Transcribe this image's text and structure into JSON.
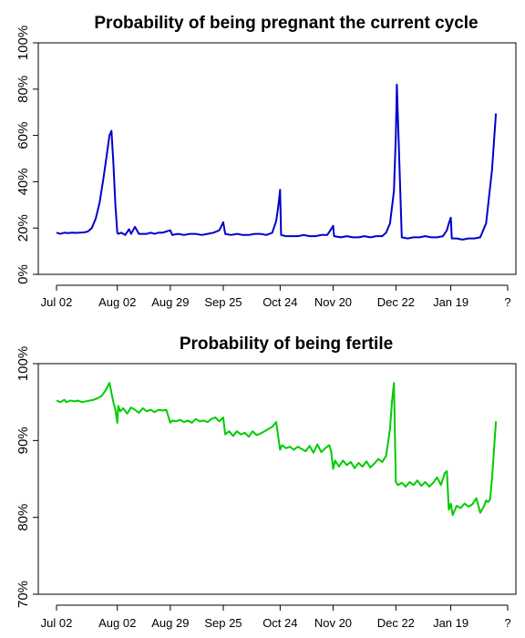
{
  "chart_data": [
    {
      "type": "line",
      "title": "Probability of being pregnant the current cycle",
      "xlabel": "",
      "ylabel": "",
      "x_tick_labels": [
        "Jul 02",
        "Aug 02",
        "Aug 29",
        "Sep 25",
        "Oct 24",
        "Nov 20",
        "Dec 22",
        "Jan 19",
        "?"
      ],
      "y_tick_labels": [
        "0%",
        "20%",
        "40%",
        "60%",
        "80%",
        "100%"
      ],
      "ylim": [
        0,
        100
      ],
      "y_ticks": [
        0,
        20,
        40,
        60,
        80,
        100
      ],
      "xlim": [
        -2,
        224
      ],
      "x_ticks": [
        0,
        31,
        58,
        85,
        114,
        141,
        173,
        201,
        230
      ],
      "grid": false,
      "legend": "none",
      "color": "#0000cc",
      "series": [
        {
          "x": [
            0,
            2,
            4,
            6,
            8,
            10,
            12,
            14,
            16,
            18,
            20,
            22,
            24,
            26,
            27,
            28,
            29,
            30,
            31,
            31.5,
            33,
            35,
            37,
            38,
            40,
            42,
            44,
            46,
            48,
            50,
            52,
            54,
            56,
            58,
            59,
            62,
            65,
            68,
            71,
            74,
            77,
            80,
            83,
            85,
            86,
            89,
            92,
            95,
            98,
            101,
            104,
            107,
            110,
            112,
            113,
            114,
            114.5,
            117,
            120,
            123,
            126,
            129,
            132,
            135,
            138,
            140,
            141,
            141.5,
            145,
            148,
            151,
            154,
            157,
            160,
            163,
            166,
            168,
            170,
            172,
            173,
            173.5,
            176,
            179,
            182,
            185,
            188,
            191,
            194,
            197,
            199,
            200,
            201,
            201.5,
            204,
            207,
            210,
            213,
            216,
            219,
            222,
            224
          ],
          "values": [
            18,
            17.5,
            18,
            17.8,
            18,
            17.9,
            18,
            18.1,
            18.5,
            20,
            24,
            31,
            42,
            54,
            60,
            62,
            48,
            30,
            18,
            17.5,
            18,
            17,
            19.5,
            17.5,
            20.5,
            17.5,
            17.5,
            17.5,
            18,
            17.5,
            18,
            18,
            18.5,
            19,
            17,
            17.5,
            17,
            17.5,
            17.5,
            17,
            17.5,
            18,
            19,
            22.5,
            17.5,
            17,
            17.5,
            17,
            17,
            17.5,
            17.5,
            17,
            18,
            23,
            29,
            36.5,
            17,
            16.5,
            16.5,
            16.5,
            17,
            16.5,
            16.5,
            17,
            17,
            19.5,
            21,
            16.5,
            16,
            16.5,
            16,
            16,
            16.5,
            16,
            16.5,
            16.5,
            18,
            22,
            36,
            60,
            82,
            16,
            15.5,
            16,
            16,
            16.5,
            16,
            16,
            16.5,
            19,
            22,
            24.5,
            15.5,
            15.5,
            15,
            15.5,
            15.5,
            16,
            22,
            45,
            69.5
          ]
        }
      ]
    },
    {
      "type": "line",
      "title": "Probability of being fertile",
      "xlabel": "",
      "ylabel": "",
      "x_tick_labels": [
        "Jul 02",
        "Aug 02",
        "Aug 29",
        "Sep 25",
        "Oct 24",
        "Nov 20",
        "Dec 22",
        "Jan 19",
        "?"
      ],
      "y_tick_labels": [
        "70%",
        "80%",
        "90%",
        "100%"
      ],
      "ylim": [
        70,
        100
      ],
      "y_ticks": [
        70,
        80,
        90,
        100
      ],
      "xlim": [
        -2,
        224
      ],
      "x_ticks": [
        0,
        31,
        58,
        85,
        114,
        141,
        173,
        201,
        230
      ],
      "grid": false,
      "legend": "none",
      "color": "#00cc00",
      "series": [
        {
          "x": [
            0,
            2,
            4,
            5,
            7,
            9,
            11,
            13,
            15,
            17,
            19,
            21,
            23,
            25,
            27,
            29,
            30,
            31,
            31.5,
            32.5,
            34,
            36,
            38,
            40,
            42,
            44,
            46,
            48,
            50,
            52,
            54,
            56,
            58,
            59,
            61,
            63,
            65,
            67,
            69,
            71,
            73,
            75,
            77,
            79,
            81,
            83,
            85,
            86,
            88,
            90,
            92,
            94,
            96,
            98,
            100,
            102,
            104,
            106,
            108,
            110,
            112,
            114,
            115,
            117,
            119,
            121,
            123,
            125,
            127,
            129,
            131,
            133,
            135,
            137,
            139,
            140,
            141,
            142,
            144,
            146,
            148,
            150,
            152,
            154,
            156,
            158,
            160,
            162,
            164,
            166,
            168,
            170,
            171,
            172,
            173,
            174,
            176,
            178,
            180,
            182,
            184,
            186,
            188,
            190,
            192,
            194,
            196,
            198,
            199,
            200,
            201,
            202,
            204,
            206,
            208,
            210,
            212,
            214,
            216,
            218,
            219,
            220,
            221,
            222,
            224
          ],
          "values": [
            95.2,
            95,
            95.3,
            95,
            95.2,
            95.1,
            95.2,
            95,
            95.1,
            95.2,
            95.3,
            95.5,
            95.8,
            96.5,
            97.5,
            95,
            94,
            92.3,
            94.5,
            93.8,
            94.2,
            93.5,
            94.3,
            94,
            93.6,
            94.2,
            93.8,
            94,
            93.7,
            94,
            93.9,
            94,
            92.3,
            92.6,
            92.5,
            92.7,
            92.4,
            92.6,
            92.3,
            92.8,
            92.5,
            92.6,
            92.4,
            92.8,
            93,
            92.5,
            93,
            90.8,
            91.2,
            90.6,
            91.2,
            90.8,
            91,
            90.5,
            91.2,
            90.7,
            90.9,
            91.2,
            91.5,
            91.8,
            92.4,
            88.8,
            89.4,
            89,
            89.2,
            88.8,
            89.2,
            88.9,
            88.6,
            89.3,
            88.4,
            89.5,
            88.5,
            89,
            89.4,
            88.6,
            86.3,
            87.4,
            86.6,
            87.4,
            86.8,
            87.2,
            86.4,
            87.1,
            86.6,
            87.3,
            86.5,
            87,
            87.6,
            87.2,
            88,
            91.5,
            95,
            97.5,
            84.6,
            84.2,
            84.5,
            84,
            84.6,
            84.2,
            84.8,
            84.1,
            84.6,
            84,
            84.5,
            85.2,
            84.2,
            85.8,
            86,
            81,
            81.8,
            80.3,
            81.5,
            81.2,
            81.8,
            81.4,
            81.7,
            82.5,
            80.6,
            81.5,
            82.2,
            82,
            82.3,
            85,
            92.5
          ]
        }
      ]
    }
  ]
}
